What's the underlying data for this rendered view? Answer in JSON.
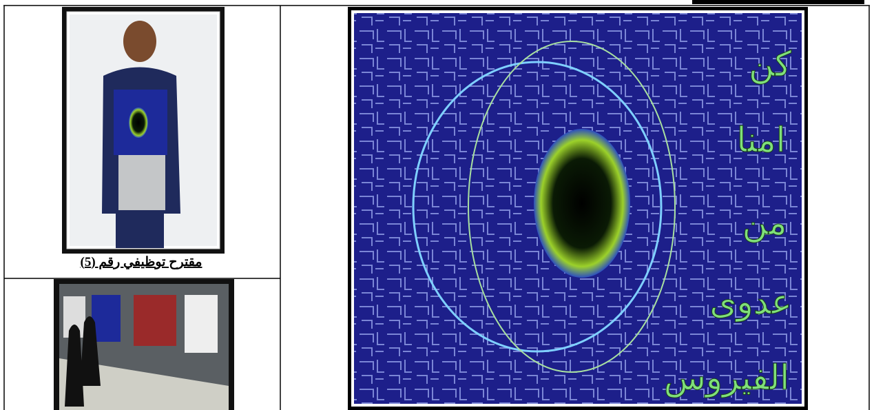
{
  "caption": "مقترح توظيفي رقم (5)",
  "poster": {
    "words": [
      "كن",
      "امنا",
      "من",
      "عدوى",
      "الفيروس"
    ]
  }
}
